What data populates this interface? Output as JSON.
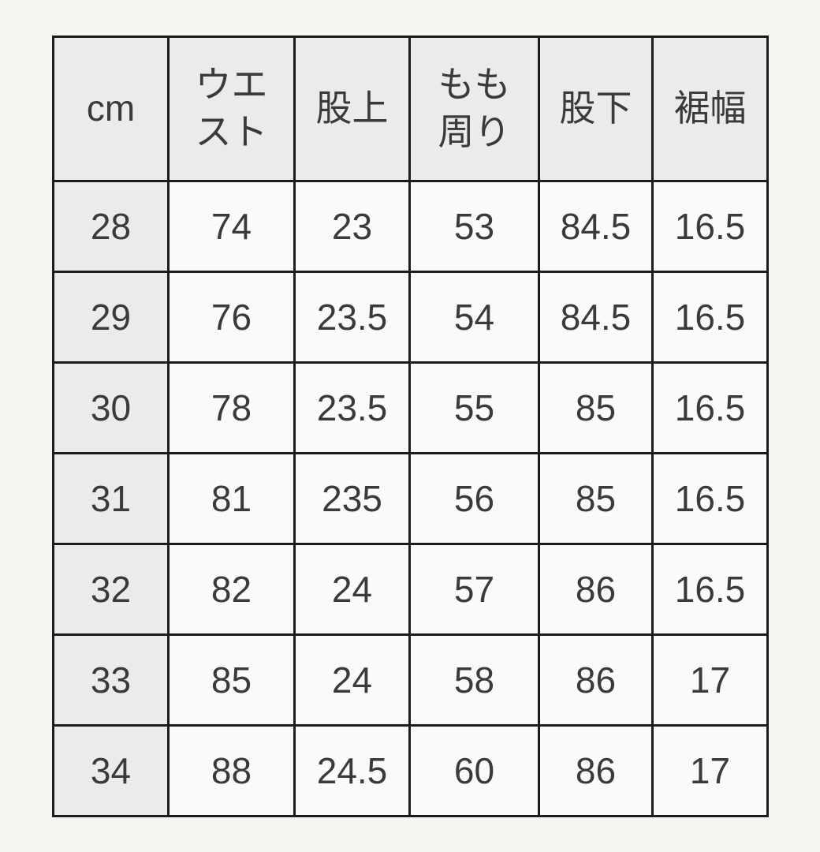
{
  "colors": {
    "page_background": "#f6f5f1",
    "border": "#1c1c1c",
    "header_cell_background": "#ebebe9",
    "data_cell_background": "#fafaf8",
    "text": "#3a3a3a"
  },
  "chart_data": {
    "type": "table",
    "title": "",
    "columns": [
      "cm",
      "ウエ\nスト",
      "股上",
      "もも\n周り",
      "股下",
      "裾幅"
    ],
    "rows": [
      [
        "28",
        "74",
        "23",
        "53",
        "84.5",
        "16.5"
      ],
      [
        "29",
        "76",
        "23.5",
        "54",
        "84.5",
        "16.5"
      ],
      [
        "30",
        "78",
        "23.5",
        "55",
        "85",
        "16.5"
      ],
      [
        "31",
        "81",
        "235",
        "56",
        "85",
        "16.5"
      ],
      [
        "32",
        "82",
        "24",
        "57",
        "86",
        "16.5"
      ],
      [
        "33",
        "85",
        "24",
        "58",
        "86",
        "17"
      ],
      [
        "34",
        "88",
        "24.5",
        "60",
        "86",
        "17"
      ]
    ]
  }
}
